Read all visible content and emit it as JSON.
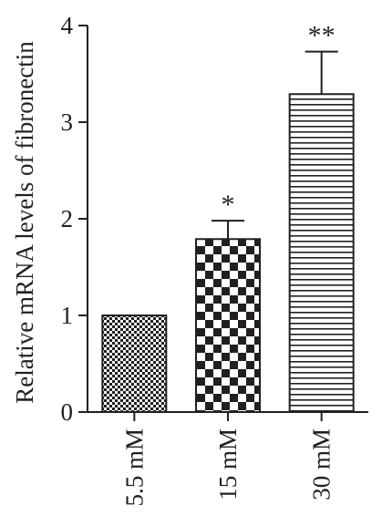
{
  "chart_data": {
    "type": "bar",
    "title": "",
    "xlabel": "",
    "ylabel": "Relative mRNA levels of fibronectin",
    "ylim": [
      0,
      4
    ],
    "yticks": [
      0,
      1,
      2,
      3,
      4
    ],
    "categories": [
      "5.5 mM",
      "15 mM",
      "30 mM"
    ],
    "values": [
      1.0,
      1.79,
      3.29
    ],
    "error_bars": [
      0.0,
      0.19,
      0.44
    ],
    "significance": [
      "",
      "*",
      "**"
    ],
    "bar_patterns": [
      "fine-checker",
      "coarse-checker",
      "horizontal-lines"
    ],
    "grid": false,
    "colors": {
      "ink": "#231f20",
      "background": "#ffffff"
    }
  }
}
